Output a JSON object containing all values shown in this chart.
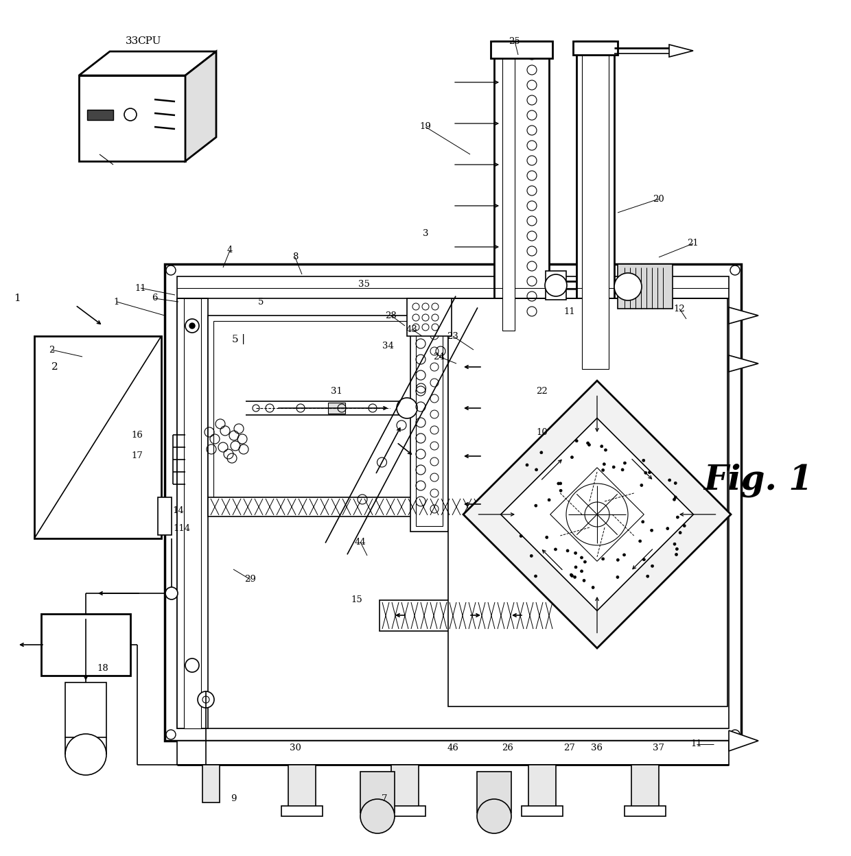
{
  "bg_color": "#ffffff",
  "fig_width": 12.4,
  "fig_height": 12.48,
  "fig1_label": "Fig. 1"
}
